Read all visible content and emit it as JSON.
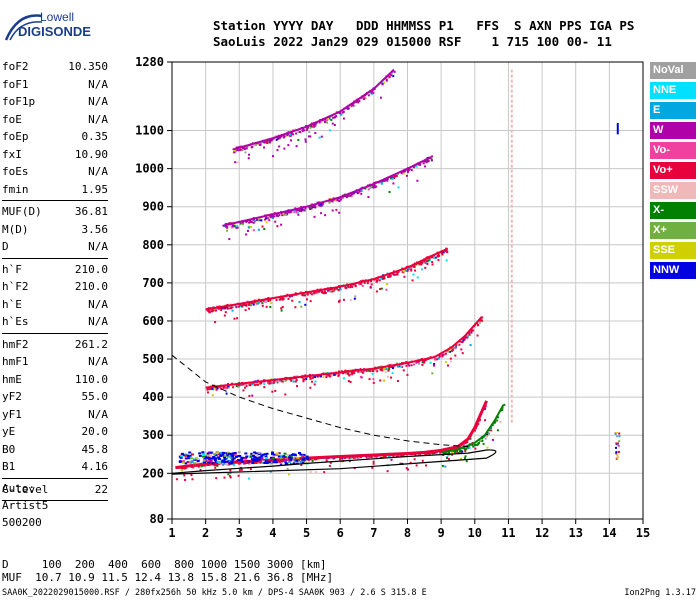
{
  "logo": {
    "line1": "Lowell",
    "line2": "DIGISONDE"
  },
  "header": {
    "labels_line": "Station YYYY DAY   DDD HHMMSS P1   FFS  S AXN PPS IGA PS",
    "values_line": "SaoLuis 2022 Jan29 029 015000 RSF    1 715 100 00- 11"
  },
  "params": [
    {
      "name": "foF2",
      "value": "10.350"
    },
    {
      "name": "foF1",
      "value": "N/A"
    },
    {
      "name": "foF1p",
      "value": "N/A"
    },
    {
      "name": "foE",
      "value": "N/A"
    },
    {
      "name": "foEp",
      "value": "0.35"
    },
    {
      "name": "fxI",
      "value": "10.90"
    },
    {
      "name": "foEs",
      "value": "N/A"
    },
    {
      "name": "fmin",
      "value": "1.95"
    },
    {
      "sep": true
    },
    {
      "name": "MUF(D)",
      "value": "36.81"
    },
    {
      "name": "M(D)",
      "value": "3.56"
    },
    {
      "name": "D",
      "value": "N/A"
    },
    {
      "sep": true
    },
    {
      "name": "h`F",
      "value": "210.0"
    },
    {
      "name": "h`F2",
      "value": "210.0"
    },
    {
      "name": "h`E",
      "value": "N/A"
    },
    {
      "name": "h`Es",
      "value": "N/A"
    },
    {
      "sep": true
    },
    {
      "name": "hmF2",
      "value": "261.2"
    },
    {
      "name": "hmF1",
      "value": "N/A"
    },
    {
      "name": "hmE",
      "value": "110.0"
    },
    {
      "name": "yF2",
      "value": "55.0"
    },
    {
      "name": "yF1",
      "value": "N/A"
    },
    {
      "name": "yE",
      "value": "20.0"
    },
    {
      "name": "B0",
      "value": "45.8"
    },
    {
      "name": "B1",
      "value": "4.16"
    },
    {
      "sep": true
    },
    {
      "name": "C-level",
      "value": "22"
    },
    {
      "sep": true
    }
  ],
  "auto": {
    "line1": "Auto:",
    "line2": "Artist5",
    "line3": "500200"
  },
  "legend": [
    {
      "label": "NoVal",
      "color": "#a0a0a0"
    },
    {
      "label": "NNE",
      "color": "#00e0ff"
    },
    {
      "label": "E",
      "color": "#00a8e0"
    },
    {
      "label": "W",
      "color": "#b000a8"
    },
    {
      "label": "Vo-",
      "color": "#f040a0"
    },
    {
      "label": "Vo+",
      "color": "#e8003c"
    },
    {
      "label": "SSW",
      "color": "#f0b8b8"
    },
    {
      "label": "X-",
      "color": "#008000"
    },
    {
      "label": "X+",
      "color": "#70b040"
    },
    {
      "label": "SSE",
      "color": "#d0d000"
    },
    {
      "label": "NNW",
      "color": "#0000e0"
    }
  ],
  "dmuf": {
    "d_line": "D     100  200  400  600  800 1000 1500 3000 [km]",
    "muf_line": "MUF  10.7 10.9 11.5 12.4 13.8 15.8 21.6 36.8 [MHz]"
  },
  "footer": {
    "left": "SAA0K_2022029015000.RSF / 280fx256h 50 kHz 5.0 km / DPS-4 SAA0K 903 / 2.6 S 315.8 E",
    "right": "Ion2Png 1.3.17"
  },
  "chart_data": {
    "type": "scatter",
    "title": "",
    "xlabel": "",
    "ylabel": "",
    "xlim": [
      1,
      15
    ],
    "ylim": [
      80,
      1280
    ],
    "x_ticks": [
      1,
      2,
      3,
      4,
      5,
      6,
      7,
      8,
      9,
      10,
      11,
      12,
      13,
      14,
      15
    ],
    "y_ticks": [
      80,
      200,
      300,
      400,
      500,
      600,
      700,
      800,
      900,
      1000,
      1100,
      1280
    ],
    "grid": true,
    "traces": [
      {
        "name": "F2 O-trace 1st hop",
        "color": "#e8003c",
        "points": [
          [
            1.1,
            215
          ],
          [
            2,
            225
          ],
          [
            3,
            230
          ],
          [
            4,
            235
          ],
          [
            5,
            240
          ],
          [
            6,
            244
          ],
          [
            7,
            248
          ],
          [
            8,
            252
          ],
          [
            8.5,
            255
          ],
          [
            9,
            260
          ],
          [
            9.5,
            270
          ],
          [
            9.8,
            290
          ],
          [
            10,
            320
          ],
          [
            10.2,
            360
          ],
          [
            10.35,
            390
          ]
        ]
      },
      {
        "name": "F2 X-trace 1st hop",
        "color": "#008000",
        "points": [
          [
            9,
            255
          ],
          [
            9.5,
            262
          ],
          [
            10,
            280
          ],
          [
            10.3,
            300
          ],
          [
            10.6,
            340
          ],
          [
            10.85,
            380
          ]
        ]
      },
      {
        "name": "2nd hop",
        "color": "#e8003c",
        "points": [
          [
            2,
            425
          ],
          [
            3,
            435
          ],
          [
            4,
            445
          ],
          [
            5,
            455
          ],
          [
            6,
            465
          ],
          [
            7,
            475
          ],
          [
            8,
            490
          ],
          [
            8.8,
            505
          ],
          [
            9.3,
            530
          ],
          [
            9.7,
            560
          ],
          [
            10,
            590
          ],
          [
            10.2,
            610
          ]
        ]
      },
      {
        "name": "3rd hop",
        "color": "#e8003c",
        "points": [
          [
            2,
            630
          ],
          [
            3,
            645
          ],
          [
            4,
            660
          ],
          [
            5,
            675
          ],
          [
            6,
            690
          ],
          [
            7,
            710
          ],
          [
            8,
            740
          ],
          [
            8.7,
            770
          ],
          [
            9.2,
            790
          ]
        ]
      },
      {
        "name": "4th hop",
        "color": "#b000a8",
        "points": [
          [
            2.5,
            850
          ],
          [
            3,
            860
          ],
          [
            4,
            880
          ],
          [
            5,
            900
          ],
          [
            6,
            925
          ],
          [
            7,
            960
          ],
          [
            8,
            1000
          ],
          [
            8.7,
            1030
          ]
        ]
      },
      {
        "name": "5th hop",
        "color": "#b000a8",
        "points": [
          [
            2.8,
            1050
          ],
          [
            3,
            1055
          ],
          [
            4,
            1080
          ],
          [
            5,
            1110
          ],
          [
            6,
            1150
          ],
          [
            7,
            1210
          ],
          [
            7.6,
            1260
          ]
        ]
      }
    ],
    "profile_solid": [
      [
        1,
        200
      ],
      [
        2,
        207
      ],
      [
        3,
        213
      ],
      [
        4,
        219
      ],
      [
        5,
        226
      ],
      [
        6,
        232
      ],
      [
        7,
        238
      ],
      [
        8,
        244
      ],
      [
        9,
        249
      ],
      [
        9.8,
        253
      ],
      [
        10.35,
        261.2
      ]
    ],
    "profile_dashed": [
      [
        1,
        510
      ],
      [
        2,
        440
      ],
      [
        3,
        400
      ],
      [
        4,
        370
      ],
      [
        5,
        345
      ],
      [
        6,
        320
      ],
      [
        7,
        300
      ],
      [
        8,
        285
      ],
      [
        9,
        275
      ],
      [
        9.8,
        270
      ]
    ]
  }
}
